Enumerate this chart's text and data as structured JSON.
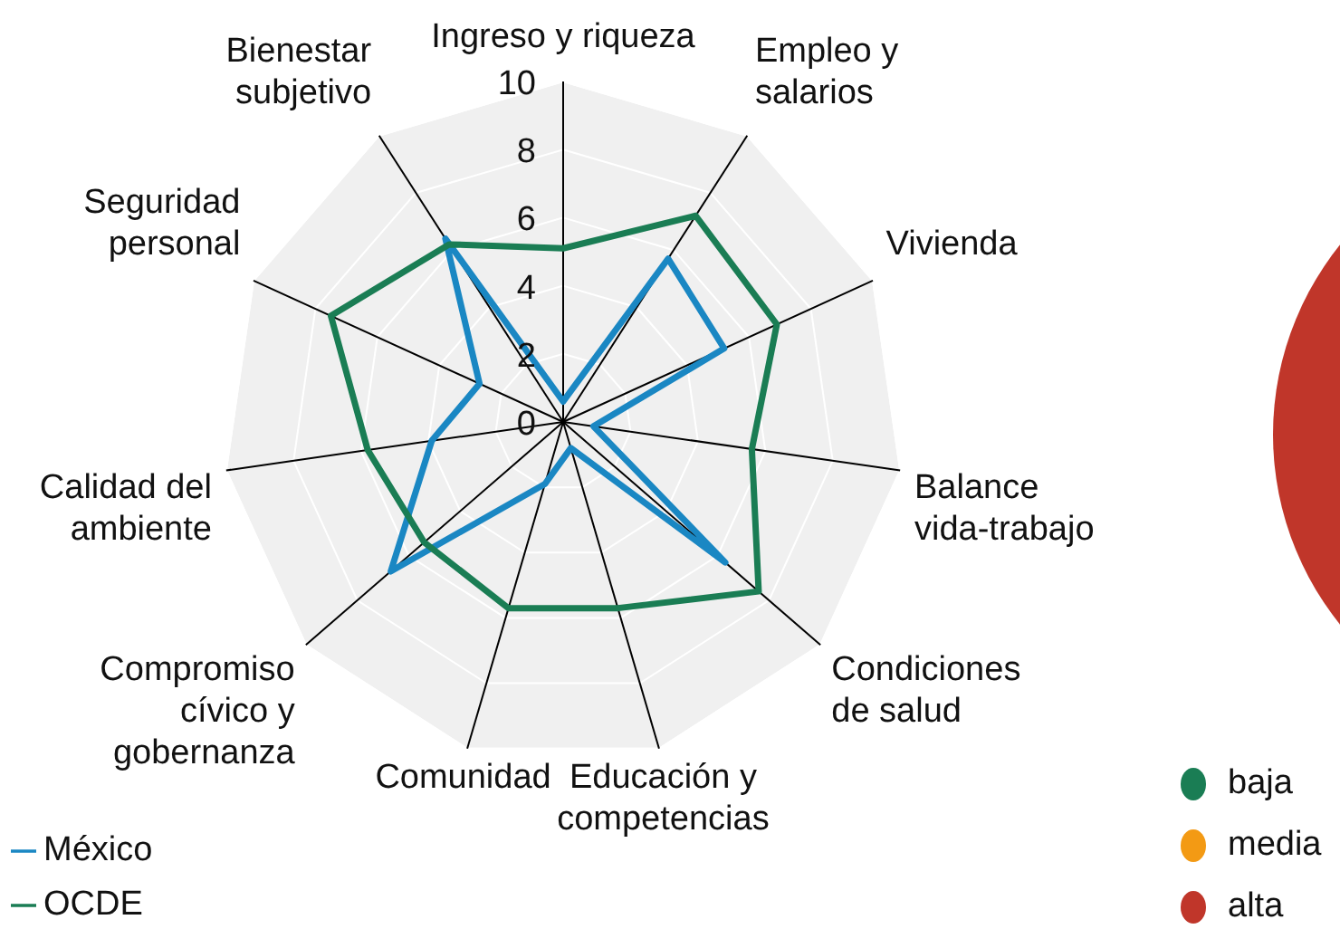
{
  "chart_data": [
    {
      "type": "radar",
      "categories": [
        "Ingreso y riqueza",
        "Empleo y salarios",
        "Vivienda",
        "Balance vida-trabajo",
        "Condiciones de salud",
        "Educación y competencias",
        "Comunidad",
        "Compromiso cívico y gobernanza",
        "Calidad del ambiente",
        "Seguridad personal",
        "Bienestar subjetivo"
      ],
      "series": [
        {
          "name": "México",
          "color": "#1a87c3",
          "values": [
            0.6,
            5.7,
            5.2,
            0.9,
            6.3,
            0.8,
            1.9,
            6.7,
            3.9,
            2.7,
            6.4
          ]
        },
        {
          "name": "OCDE",
          "color": "#1a7d54",
          "values": [
            5.1,
            7.2,
            6.9,
            5.6,
            7.6,
            5.7,
            5.7,
            5.4,
            5.8,
            7.5,
            6.2
          ]
        }
      ],
      "ylim": [
        0,
        10
      ],
      "yticks": [
        0,
        2,
        4,
        6,
        8,
        10
      ],
      "grid": true,
      "legend": "bottom left"
    },
    {
      "type": "other",
      "categories": [
        "baja",
        "media",
        "alta"
      ],
      "colors": [
        "#1a7d54",
        "#f39a14",
        "#c0362a"
      ]
    }
  ]
}
